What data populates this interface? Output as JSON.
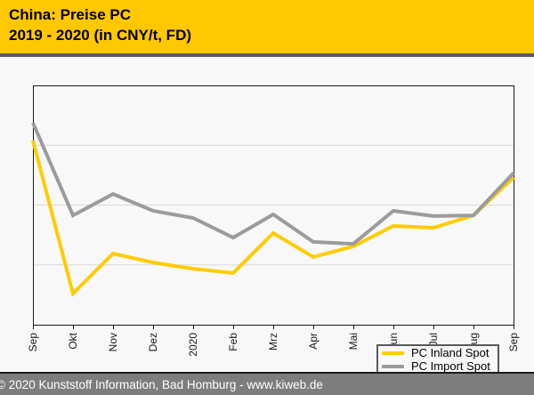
{
  "header": {
    "title_line1": "China: Preise PC",
    "title_line2": "2019 - 2020 (in CNY/t, FD)"
  },
  "footer": {
    "text": "© 2020 Kunststoff Information, Bad Homburg - www.kiweb.de"
  },
  "colors": {
    "header_bg": "#FFC800",
    "header_text": "#000000",
    "separator": "#5B5B5B",
    "page_bg": "#F8F8F8",
    "plot_border": "#1A1A1A",
    "grid": "#D9D9D9",
    "inland_yellow": "#FFCC00",
    "import_gray": "#9B9B9B",
    "legend_border": "#595959",
    "footer_bg": "#7D7D7D",
    "footer_text": "#FFFFFF",
    "tick_label": "#1A1A1A"
  },
  "chart_data": {
    "type": "line",
    "title": "China: Preise PC",
    "subtitle": "2019 - 2020 (in CNY/t, FD)",
    "unit": "CNY/t, FD",
    "x_tick_labels": [
      "Sep",
      "Okt",
      "Nov",
      "Dez",
      "2020",
      "Feb",
      "Mrz",
      "Apr",
      "Mai",
      "Jun",
      "Jul",
      "Aug",
      "Sep"
    ],
    "x_tick_label_rotation_deg": -90,
    "y_axis": {
      "tick_labels_visible": false,
      "scale_note": "no y-axis values shown in source; series values below are % of plot height above the x-axis",
      "range": [
        0,
        100
      ]
    },
    "gridlines": {
      "horizontal_positions_pct": [
        25,
        50,
        75
      ],
      "vertical": false
    },
    "series": [
      {
        "name": "PC Inland Spot",
        "color": "#FFCC00",
        "values": [
          77.0,
          13.0,
          29.7,
          26.0,
          23.4,
          21.6,
          38.3,
          28.3,
          32.7,
          41.3,
          40.5,
          45.7,
          61.5
        ]
      },
      {
        "name": "PC Import Spot",
        "color": "#9B9B9B",
        "values": [
          84.4,
          45.7,
          54.6,
          47.6,
          44.6,
          36.4,
          46.1,
          34.6,
          33.8,
          47.6,
          45.4,
          45.7,
          63.4
        ]
      }
    ],
    "legend": {
      "position": "inside bottom-right",
      "entries": [
        "PC Inland Spot",
        "PC Import Spot"
      ]
    }
  }
}
